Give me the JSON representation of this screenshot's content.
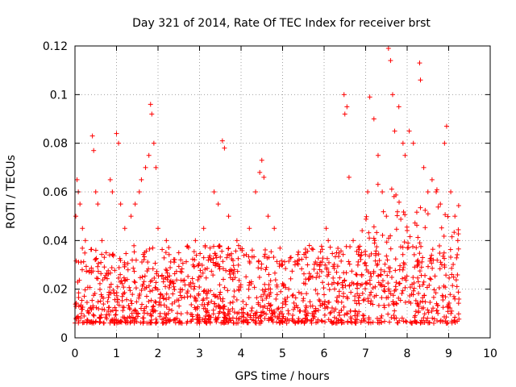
{
  "chart_data": {
    "type": "scatter",
    "title": "Day 321 of 2014, Rate Of TEC Index for receiver brst",
    "xlabel": "GPS time / hours",
    "ylabel": "ROTI / TECUs",
    "xlim": [
      0,
      10
    ],
    "ylim": [
      0,
      0.12
    ],
    "grid": true,
    "marker": "+",
    "marker_color": "#ff0000",
    "xticks": [
      0,
      1,
      2,
      3,
      4,
      5,
      6,
      7,
      8,
      9,
      10
    ],
    "xtick_labels": [
      "0",
      "1",
      "2",
      "3",
      "4",
      "5",
      "6",
      "7",
      "8",
      "9",
      "10"
    ],
    "yticks": [
      0,
      0.02,
      0.04,
      0.06,
      0.08,
      0.1,
      0.12
    ],
    "ytick_labels": [
      "0",
      "0.02",
      "0.04",
      "0.06",
      "0.08",
      "0.1",
      "0.12"
    ],
    "x_data_range_hours": [
      0.0,
      9.25
    ],
    "series": [
      {
        "name": "ROTI",
        "points": [
          [
            0.02,
            0.05
          ],
          [
            0.05,
            0.065
          ],
          [
            0.08,
            0.06
          ],
          [
            0.12,
            0.055
          ],
          [
            0.18,
            0.045
          ],
          [
            0.25,
            0.04
          ],
          [
            0.42,
            0.083
          ],
          [
            0.45,
            0.077
          ],
          [
            0.5,
            0.06
          ],
          [
            0.55,
            0.055
          ],
          [
            0.65,
            0.04
          ],
          [
            0.75,
            0.035
          ],
          [
            0.85,
            0.065
          ],
          [
            0.9,
            0.06
          ],
          [
            1.0,
            0.084
          ],
          [
            1.05,
            0.08
          ],
          [
            1.1,
            0.055
          ],
          [
            1.2,
            0.045
          ],
          [
            1.35,
            0.05
          ],
          [
            1.45,
            0.055
          ],
          [
            1.55,
            0.06
          ],
          [
            1.6,
            0.065
          ],
          [
            1.7,
            0.07
          ],
          [
            1.78,
            0.075
          ],
          [
            1.82,
            0.096
          ],
          [
            1.85,
            0.092
          ],
          [
            1.9,
            0.08
          ],
          [
            1.95,
            0.07
          ],
          [
            2.0,
            0.045
          ],
          [
            2.2,
            0.04
          ],
          [
            2.5,
            0.035
          ],
          [
            2.9,
            0.04
          ],
          [
            3.1,
            0.045
          ],
          [
            3.35,
            0.06
          ],
          [
            3.45,
            0.055
          ],
          [
            3.55,
            0.081
          ],
          [
            3.6,
            0.078
          ],
          [
            3.7,
            0.05
          ],
          [
            3.9,
            0.04
          ],
          [
            4.2,
            0.045
          ],
          [
            4.35,
            0.06
          ],
          [
            4.45,
            0.068
          ],
          [
            4.5,
            0.073
          ],
          [
            4.55,
            0.066
          ],
          [
            4.65,
            0.05
          ],
          [
            4.8,
            0.045
          ],
          [
            5.0,
            0.03
          ],
          [
            5.3,
            0.03
          ],
          [
            5.6,
            0.03
          ],
          [
            5.9,
            0.03
          ],
          [
            6.05,
            0.045
          ],
          [
            6.1,
            0.04
          ],
          [
            6.3,
            0.035
          ],
          [
            6.48,
            0.1
          ],
          [
            6.5,
            0.092
          ],
          [
            6.55,
            0.095
          ],
          [
            6.6,
            0.066
          ],
          [
            6.7,
            0.04
          ],
          [
            6.9,
            0.035
          ],
          [
            7.05,
            0.06
          ],
          [
            7.1,
            0.099
          ],
          [
            7.2,
            0.09
          ],
          [
            7.3,
            0.075
          ],
          [
            7.4,
            0.06
          ],
          [
            7.5,
            0.05
          ],
          [
            7.55,
            0.119
          ],
          [
            7.6,
            0.114
          ],
          [
            7.65,
            0.1
          ],
          [
            7.7,
            0.085
          ],
          [
            7.8,
            0.095
          ],
          [
            7.9,
            0.08
          ],
          [
            7.95,
            0.075
          ],
          [
            8.05,
            0.085
          ],
          [
            8.15,
            0.08
          ],
          [
            8.3,
            0.113
          ],
          [
            8.32,
            0.106
          ],
          [
            8.4,
            0.07
          ],
          [
            8.5,
            0.06
          ],
          [
            8.6,
            0.065
          ],
          [
            8.7,
            0.06
          ],
          [
            8.8,
            0.055
          ],
          [
            8.9,
            0.08
          ],
          [
            8.95,
            0.087
          ],
          [
            9.05,
            0.06
          ],
          [
            9.15,
            0.05
          ],
          [
            9.22,
            0.04
          ]
        ]
      }
    ]
  }
}
